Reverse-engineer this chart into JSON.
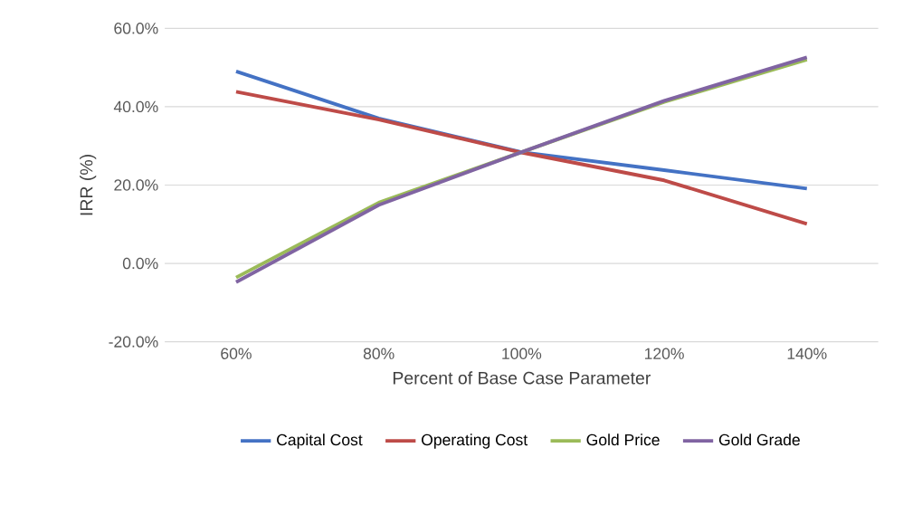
{
  "chart_data": {
    "type": "line",
    "xlabel": "Percent of Base Case Parameter",
    "ylabel": "IRR (%)",
    "categories": [
      "60%",
      "80%",
      "100%",
      "120%",
      "140%"
    ],
    "series": [
      {
        "name": "Capital Cost",
        "color": "#4472c4",
        "values": [
          49.0,
          37.0,
          28.4,
          23.8,
          19.1
        ]
      },
      {
        "name": "Operating Cost",
        "color": "#be4b48",
        "values": [
          43.8,
          36.7,
          28.3,
          21.2,
          10.1
        ]
      },
      {
        "name": "Gold Price",
        "color": "#9bbb59",
        "values": [
          -3.6,
          15.5,
          28.4,
          41.2,
          52.0
        ]
      },
      {
        "name": "Gold Grade",
        "color": "#8064a2",
        "values": [
          -4.8,
          14.9,
          28.4,
          41.5,
          52.6
        ]
      }
    ],
    "ylim": [
      -20,
      60
    ],
    "yticks": [
      {
        "value": -20,
        "label": "-20.0%"
      },
      {
        "value": 0,
        "label": "0.0%"
      },
      {
        "value": 20,
        "label": "20.0%"
      },
      {
        "value": 40,
        "label": "40.0%"
      },
      {
        "value": 60,
        "label": "60.0%"
      }
    ],
    "grid": "y",
    "legend": "bottom",
    "marker": "none",
    "line_style": "solid"
  }
}
